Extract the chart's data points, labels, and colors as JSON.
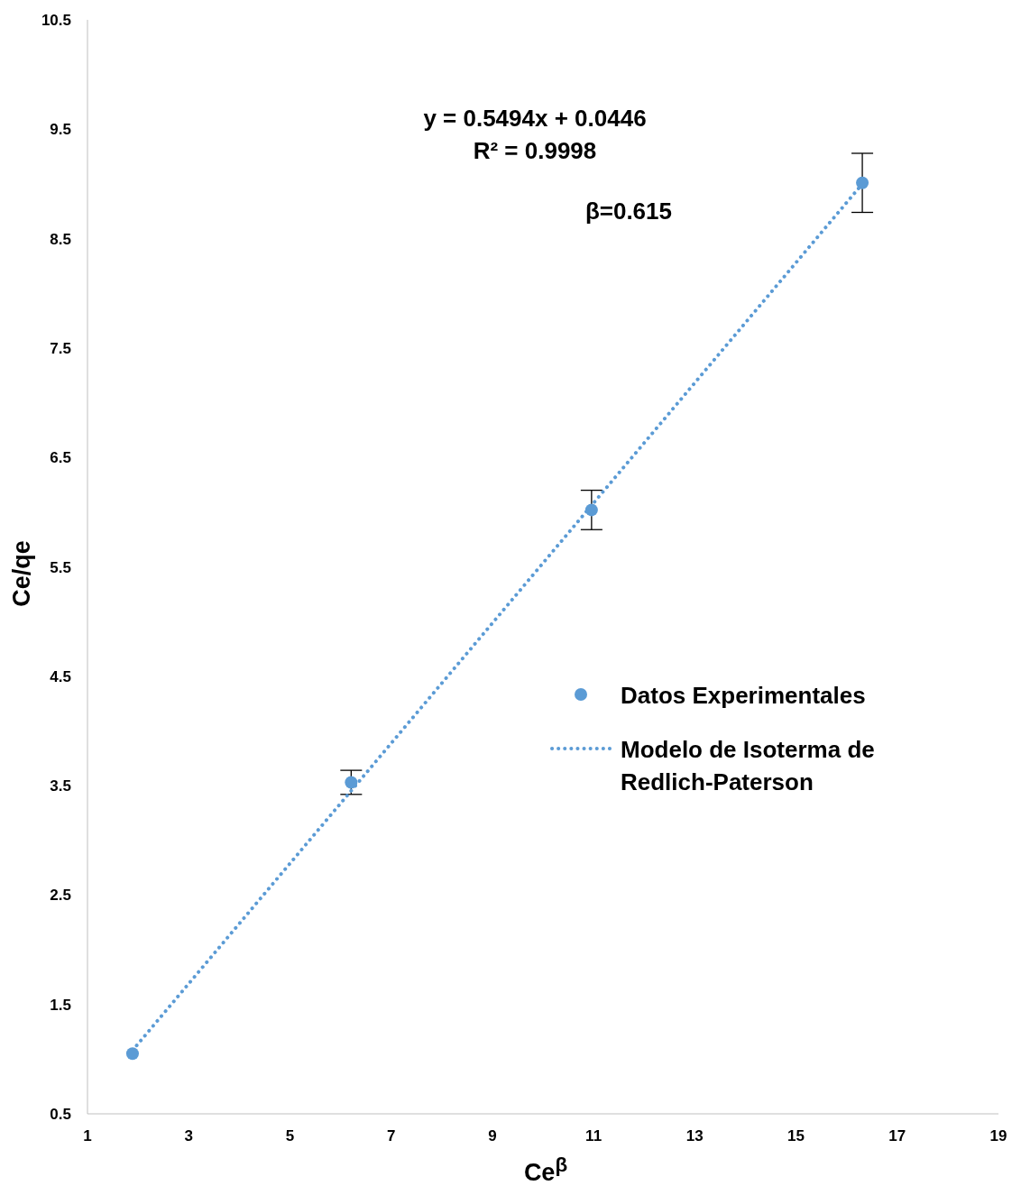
{
  "chart_data": {
    "type": "scatter",
    "xlabel": "Ce$^{β}$",
    "ylabel": "Ce/qe",
    "xlim": [
      1,
      19
    ],
    "xticks": [
      1,
      3,
      5,
      7,
      9,
      11,
      13,
      15,
      17,
      19
    ],
    "ylim": [
      0.5,
      10.5
    ],
    "yticks": [
      0.5,
      1.5,
      2.5,
      3.5,
      4.5,
      5.5,
      6.5,
      7.5,
      8.5,
      9.5,
      10.5
    ],
    "grid": false,
    "legend": "right",
    "annotations": [
      "y = 0.5494x + 0.0446",
      "R² = 0.9998",
      "β=0.615"
    ],
    "series": [
      {
        "name": "Datos Experimentales",
        "type": "scatter",
        "marker": "circle",
        "color": "#5b9bd5",
        "x": [
          1.89,
          6.21,
          10.96,
          16.31
        ],
        "values": [
          1.05,
          3.53,
          6.02,
          9.01
        ],
        "errors": [
          null,
          0.11,
          0.18,
          0.27
        ]
      },
      {
        "name": "Modelo de Isoterma de Redlich-Paterson",
        "type": "line",
        "marker": "none",
        "line_style": "dotted",
        "color": "#5b9bd5",
        "x": [
          1.89,
          16.31
        ],
        "values": [
          1.08,
          9.0
        ]
      }
    ]
  }
}
